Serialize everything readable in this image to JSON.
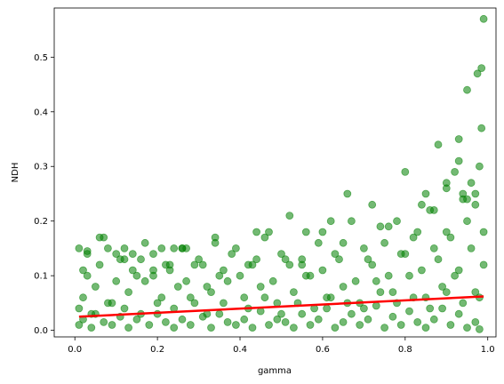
{
  "chart_data": {
    "type": "scatter",
    "title": "",
    "xlabel": "gamma",
    "ylabel": "NDH",
    "xlim": [
      -0.05,
      1.02
    ],
    "ylim": [
      -0.012,
      0.59
    ],
    "xticks": [
      0.0,
      0.2,
      0.4,
      0.6,
      0.8,
      1.0
    ],
    "xtick_labels": [
      "0.0",
      "0.2",
      "0.4",
      "0.6",
      "0.8",
      "1.0"
    ],
    "yticks": [
      0.0,
      0.1,
      0.2,
      0.3,
      0.4,
      0.5
    ],
    "ytick_labels": [
      "0.0",
      "0.1",
      "0.2",
      "0.3",
      "0.4",
      "0.5"
    ],
    "grid": false,
    "legend": "none",
    "colors": {
      "points": "#008000",
      "trend": "#ff0000"
    },
    "series": [
      {
        "kind": "points",
        "x": [
          0.01,
          0.02,
          0.04,
          0.05,
          0.07,
          0.09,
          0.11,
          0.13,
          0.15,
          0.18,
          0.2,
          0.22,
          0.24,
          0.26,
          0.28,
          0.31,
          0.33,
          0.35,
          0.37,
          0.39,
          0.41,
          0.43,
          0.45,
          0.47,
          0.49,
          0.51,
          0.53,
          0.55,
          0.57,
          0.59,
          0.61,
          0.63,
          0.65,
          0.67,
          0.69,
          0.71,
          0.73,
          0.75,
          0.77,
          0.79,
          0.81,
          0.83,
          0.85,
          0.87,
          0.89,
          0.91,
          0.93,
          0.95,
          0.97,
          0.98,
          0.02,
          0.05,
          0.09,
          0.13,
          0.17,
          0.21,
          0.25,
          0.29,
          0.33,
          0.37,
          0.41,
          0.45,
          0.49,
          0.53,
          0.57,
          0.61,
          0.65,
          0.69,
          0.73,
          0.77,
          0.81,
          0.85,
          0.89,
          0.93,
          0.97,
          0.03,
          0.06,
          0.1,
          0.14,
          0.19,
          0.23,
          0.27,
          0.32,
          0.36,
          0.4,
          0.44,
          0.48,
          0.52,
          0.56,
          0.6,
          0.64,
          0.68,
          0.72,
          0.76,
          0.8,
          0.84,
          0.88,
          0.92,
          0.96,
          0.99,
          0.01,
          0.04,
          0.08,
          0.12,
          0.16,
          0.2,
          0.24,
          0.28,
          0.32,
          0.36,
          0.42,
          0.46,
          0.5,
          0.54,
          0.58,
          0.62,
          0.66,
          0.7,
          0.74,
          0.78,
          0.82,
          0.86,
          0.9,
          0.94,
          0.98,
          0.02,
          0.07,
          0.11,
          0.15,
          0.19,
          0.23,
          0.27,
          0.31,
          0.35,
          0.39,
          0.43,
          0.47,
          0.51,
          0.55,
          0.59,
          0.63,
          0.67,
          0.71,
          0.75,
          0.79,
          0.83,
          0.87,
          0.91,
          0.95,
          0.99,
          0.03,
          0.08,
          0.12,
          0.17,
          0.22,
          0.26,
          0.3,
          0.34,
          0.38,
          0.42,
          0.46,
          0.5,
          0.55,
          0.6,
          0.65,
          0.7,
          0.74,
          0.78,
          0.82,
          0.86,
          0.9,
          0.94,
          0.97,
          0.01,
          0.03,
          0.06,
          0.1,
          0.12,
          0.14,
          0.16,
          0.19,
          0.21,
          0.24,
          0.26,
          0.29,
          0.34,
          0.44,
          0.52,
          0.56,
          0.62,
          0.66,
          0.72,
          0.76,
          0.8,
          0.84,
          0.88,
          0.9,
          0.92,
          0.93,
          0.94,
          0.95,
          0.96,
          0.97,
          0.98,
          0.985,
          0.99,
          0.985,
          0.975,
          0.95,
          0.93,
          0.9,
          0.87,
          0.85
        ],
        "y": [
          0.01,
          0.02,
          0.005,
          0.03,
          0.015,
          0.01,
          0.025,
          0.005,
          0.02,
          0.01,
          0.03,
          0.015,
          0.005,
          0.02,
          0.01,
          0.025,
          0.005,
          0.03,
          0.015,
          0.01,
          0.02,
          0.005,
          0.035,
          0.01,
          0.02,
          0.015,
          0.005,
          0.03,
          0.01,
          0.02,
          0.04,
          0.005,
          0.015,
          0.03,
          0.01,
          0.02,
          0.045,
          0.005,
          0.025,
          0.01,
          0.035,
          0.015,
          0.005,
          0.02,
          0.04,
          0.01,
          0.03,
          0.005,
          0.015,
          0.002,
          0.06,
          0.08,
          0.05,
          0.07,
          0.09,
          0.06,
          0.08,
          0.05,
          0.07,
          0.09,
          0.06,
          0.08,
          0.05,
          0.07,
          0.1,
          0.06,
          0.08,
          0.05,
          0.09,
          0.07,
          0.1,
          0.06,
          0.08,
          0.11,
          0.07,
          0.1,
          0.12,
          0.09,
          0.11,
          0.1,
          0.12,
          0.09,
          0.08,
          0.11,
          0.1,
          0.13,
          0.09,
          0.12,
          0.1,
          0.11,
          0.13,
          0.09,
          0.12,
          0.1,
          0.14,
          0.11,
          0.13,
          0.1,
          0.15,
          0.12,
          0.04,
          0.03,
          0.05,
          0.04,
          0.03,
          0.05,
          0.04,
          0.06,
          0.03,
          0.05,
          0.04,
          0.06,
          0.03,
          0.05,
          0.04,
          0.06,
          0.05,
          0.04,
          0.07,
          0.05,
          0.06,
          0.04,
          0.07,
          0.05,
          0.06,
          0.11,
          0.17,
          0.13,
          0.1,
          0.14,
          0.11,
          0.15,
          0.12,
          0.1,
          0.15,
          0.12,
          0.18,
          0.13,
          0.12,
          0.16,
          0.14,
          0.2,
          0.13,
          0.16,
          0.14,
          0.18,
          0.15,
          0.17,
          0.2,
          0.18,
          0.14,
          0.15,
          0.13,
          0.16,
          0.12,
          0.15,
          0.13,
          0.16,
          0.14,
          0.12,
          0.17,
          0.14,
          0.13,
          0.18,
          0.16,
          0.15,
          0.19,
          0.2,
          0.17,
          0.22,
          0.18,
          0.24,
          0.23,
          0.15,
          0.145,
          0.17,
          0.14,
          0.15,
          0.14,
          0.13,
          0.11,
          0.15,
          0.15,
          0.15,
          0.12,
          0.17,
          0.18,
          0.21,
          0.18,
          0.2,
          0.25,
          0.23,
          0.19,
          0.29,
          0.23,
          0.34,
          0.27,
          0.29,
          0.31,
          0.25,
          0.24,
          0.27,
          0.25,
          0.3,
          0.37,
          0.57,
          0.48,
          0.47,
          0.44,
          0.35,
          0.26,
          0.22,
          0.25
        ]
      },
      {
        "kind": "line",
        "x": [
          0.01,
          0.99
        ],
        "y": [
          0.025,
          0.062
        ]
      }
    ]
  }
}
